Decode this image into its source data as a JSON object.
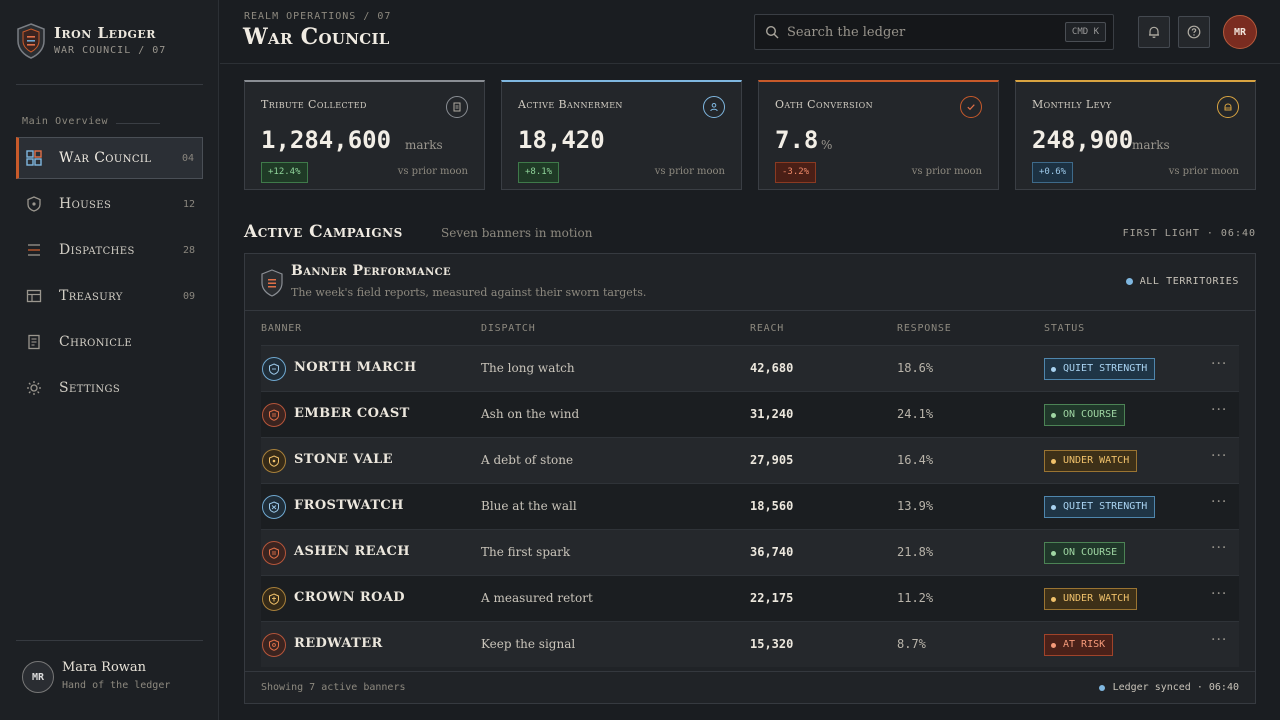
{
  "brand": {
    "title": "Iron Ledger",
    "subtitle": "WAR COUNCIL / 07"
  },
  "sidebar": {
    "heading": "Main Overview",
    "items": [
      {
        "label": "War Council",
        "count": "04",
        "icon": "grid-icon"
      },
      {
        "label": "Houses",
        "count": "12",
        "icon": "shield-icon"
      },
      {
        "label": "Dispatches",
        "count": "28",
        "icon": "list-icon"
      },
      {
        "label": "Treasury",
        "count": "09",
        "icon": "table-icon"
      },
      {
        "label": "Chronicle",
        "count": "",
        "icon": "document-icon"
      },
      {
        "label": "Settings",
        "count": "",
        "icon": "gear-icon"
      }
    ],
    "user": {
      "initials": "MR",
      "name": "Mara Rowan",
      "role": "Hand of the ledger"
    }
  },
  "header": {
    "breadcrumb": "REALM OPERATIONS / 07",
    "title": "War Council",
    "search_placeholder": "Search the ledger",
    "shortcut": "CMD K",
    "avatar_initials": "MR"
  },
  "metrics": [
    {
      "title": "Tribute Collected",
      "value": "1,284,600",
      "unit": "marks",
      "delta": "+12.4%",
      "compare": "vs prior moon",
      "accent": "#8a8e94",
      "icon": "ledger-icon"
    },
    {
      "title": "Active Bannermen",
      "value": "18,420",
      "unit": "",
      "delta": "+8.1%",
      "compare": "vs prior moon",
      "accent": "#7fb7e0",
      "icon": "person-icon"
    },
    {
      "title": "Oath Conversion",
      "value": "7.8",
      "unit": "%",
      "delta": "-3.2%",
      "compare": "vs prior moon",
      "accent": "#c85a2a",
      "icon": "check-icon"
    },
    {
      "title": "Monthly Levy",
      "value": "248,900",
      "unit": "marks",
      "delta": "+0.6%",
      "compare": "vs prior moon",
      "accent": "#d9a441",
      "icon": "coin-icon"
    }
  ],
  "section": {
    "title": "Active Campaigns",
    "subtitle": "Seven banners in motion",
    "time": "FIRST LIGHT · 06:40"
  },
  "table": {
    "title": "Banner Performance",
    "subtitle": "The week's field reports, measured against their sworn targets.",
    "filter": "ALL TERRITORIES",
    "columns": [
      "BANNER",
      "DISPATCH",
      "REACH",
      "RESPONSE",
      "STATUS"
    ],
    "rows": [
      {
        "banner": "NORTH MARCH",
        "dispatch": "The long watch",
        "reach": "42,680",
        "response": "18.6%",
        "status": "QUIET STRENGTH",
        "tone": "blue"
      },
      {
        "banner": "EMBER COAST",
        "dispatch": "Ash on the wind",
        "reach": "31,240",
        "response": "24.1%",
        "status": "ON COURSE",
        "tone": "green"
      },
      {
        "banner": "STONE VALE",
        "dispatch": "A debt of stone",
        "reach": "27,905",
        "response": "16.4%",
        "status": "UNDER WATCH",
        "tone": "amber"
      },
      {
        "banner": "FROSTWATCH",
        "dispatch": "Blue at the wall",
        "reach": "18,560",
        "response": "13.9%",
        "status": "QUIET STRENGTH",
        "tone": "blue"
      },
      {
        "banner": "ASHEN REACH",
        "dispatch": "The first spark",
        "reach": "36,740",
        "response": "21.8%",
        "status": "ON COURSE",
        "tone": "green"
      },
      {
        "banner": "CROWN ROAD",
        "dispatch": "A measured retort",
        "reach": "22,175",
        "response": "11.2%",
        "status": "UNDER WATCH",
        "tone": "amber"
      },
      {
        "banner": "REDWATER",
        "dispatch": "Keep the signal",
        "reach": "15,320",
        "response": "8.7%",
        "status": "AT RISK",
        "tone": "red"
      }
    ],
    "footer_left": "Showing 7 active banners",
    "footer_right": "Ledger synced · 06:40"
  }
}
